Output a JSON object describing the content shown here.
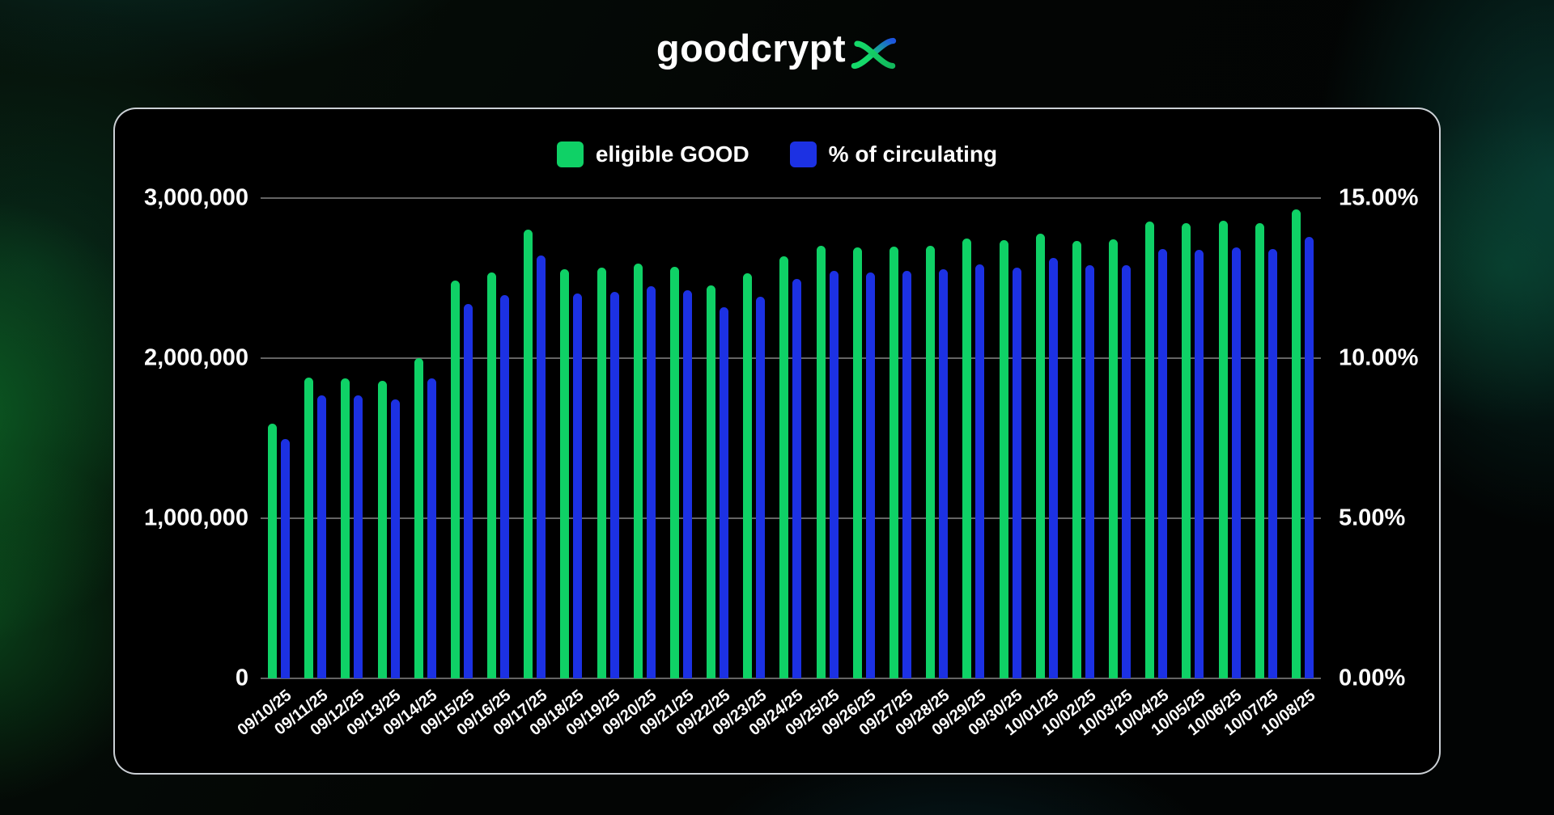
{
  "logo": {
    "text": "goodcrypt",
    "mark": "alpha-x-glyph",
    "mark_gradient_start": "#15d96a",
    "mark_gradient_end": "#1d55e0"
  },
  "chart_card": {
    "legend": [
      {
        "label": "eligible GOOD",
        "color": "#0fd166"
      },
      {
        "label": "% of circulating",
        "color": "#1c31e3"
      }
    ]
  },
  "chart_data": {
    "type": "bar",
    "title": "",
    "grid": "horizontal",
    "legend_position": "top-center",
    "categories": [
      "09/10/25",
      "09/11/25",
      "09/12/25",
      "09/13/25",
      "09/14/25",
      "09/15/25",
      "09/16/25",
      "09/17/25",
      "09/18/25",
      "09/19/25",
      "09/20/25",
      "09/21/25",
      "09/22/25",
      "09/23/25",
      "09/24/25",
      "09/25/25",
      "09/26/25",
      "09/27/25",
      "09/28/25",
      "09/29/25",
      "09/30/25",
      "10/01/25",
      "10/02/25",
      "10/03/25",
      "10/04/25",
      "10/05/25",
      "10/06/25",
      "10/07/25",
      "10/08/25"
    ],
    "series": [
      {
        "name": "eligible GOOD",
        "axis": "left",
        "color": "#0fd166",
        "values": [
          1590000,
          1880000,
          1875000,
          1860000,
          2000000,
          2485000,
          2535000,
          2805000,
          2555000,
          2565000,
          2590000,
          2570000,
          2455000,
          2530000,
          2635000,
          2700000,
          2690000,
          2695000,
          2700000,
          2750000,
          2735000,
          2780000,
          2730000,
          2740000,
          2855000,
          2845000,
          2860000,
          2845000,
          2930000
        ]
      },
      {
        "name": "% of circulating",
        "axis": "right",
        "color": "#1c31e3",
        "values": [
          7.48,
          8.83,
          8.83,
          8.7,
          9.37,
          11.69,
          11.96,
          13.22,
          12.01,
          12.08,
          12.24,
          12.13,
          11.58,
          11.91,
          12.48,
          12.74,
          12.68,
          12.73,
          12.78,
          12.93,
          12.84,
          13.12,
          12.91,
          12.9,
          13.41,
          13.39,
          13.45,
          13.41,
          13.78
        ]
      }
    ],
    "left_axis": {
      "min": 0,
      "max": 3000000,
      "ticks": [
        "3,000,000",
        "2,000,000",
        "1,000,000",
        "0"
      ]
    },
    "right_axis": {
      "min": 0,
      "max": 15,
      "unit": "%",
      "ticks": [
        "15.00%",
        "10.00%",
        "5.00%",
        "0.00%"
      ]
    }
  }
}
